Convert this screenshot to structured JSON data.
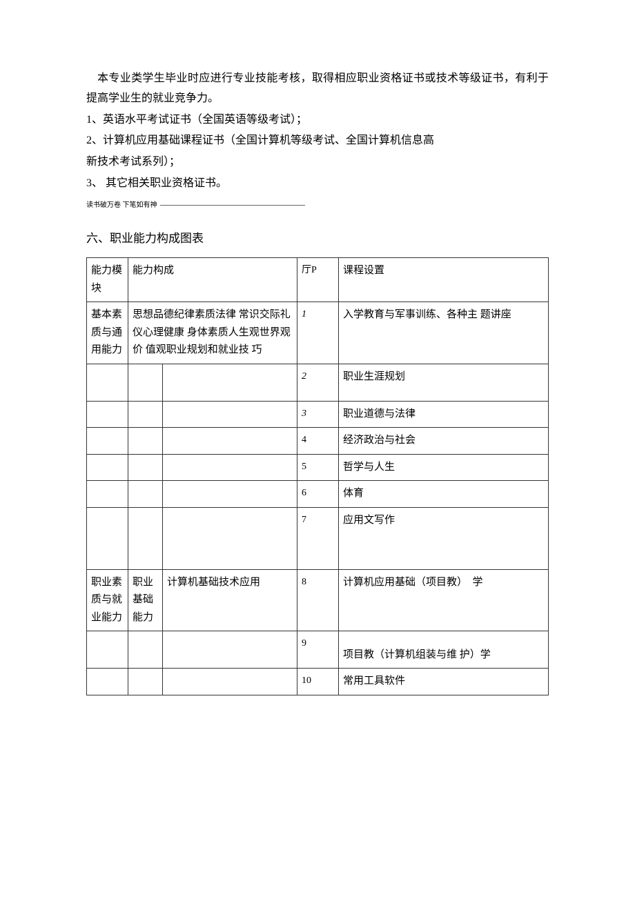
{
  "intro": {
    "p1": "本专业类学生毕业时应进行专业技能考核，取得相应职业资格证书或技术等级证书，有利于提高学业生的就业竞争力。",
    "item1": "1、英语水平考试证书（全国英语等级考试）；",
    "item2_l1": "2、计算机应用基础课程证书（全国计算机等级考试、全国计算机信息高",
    "item2_l2": "新技术考试系列）；",
    "item3": "3、 其它相关职业资格证书。"
  },
  "footnote_text": "读书破万卷 下笔如有神",
  "section_heading": "六、职业能力构成图表",
  "table": {
    "header": {
      "c1": "能力模块",
      "c2": "能力构成",
      "c3": "厅P",
      "c4": "课程设置"
    },
    "rows": [
      {
        "c1": "基本素质与通用能力",
        "c2": "思想品德纪律素质法律 常识交际礼仪心理健康 身体素质人生观世界观价 值观职业规划和就业技 巧",
        "c3": "1",
        "c4": "入学教育与军事训练、各种主 题讲座",
        "italic": true,
        "span_c2": 2
      },
      {
        "c1": "",
        "c2a": "",
        "c2b": "",
        "c3": "2",
        "c4": "职业生涯规划",
        "italic": true
      },
      {
        "c1": "",
        "c2a": "",
        "c2b": "",
        "c3": "3",
        "c4": "职业道德与法律",
        "italic": true
      },
      {
        "c1": "",
        "c2a": "",
        "c2b": "",
        "c3": "4",
        "c4": "经济政治与社会"
      },
      {
        "c1": "",
        "c2a": "",
        "c2b": "",
        "c3": "5",
        "c4": "哲学与人生"
      },
      {
        "c1": "",
        "c2a": "",
        "c2b": "",
        "c3": "6",
        "c4": "体育"
      },
      {
        "c1": "",
        "c2a": "",
        "c2b": "",
        "c3": "7",
        "c4": "应用文写作",
        "tall": true
      },
      {
        "c1": "职业素质与就业能力",
        "c2a": "职业基础能力",
        "c2b": "计算机基础技术应用",
        "c3": "8",
        "c4": "计算机应用基础（项目教）　学"
      },
      {
        "c1": "",
        "c2a": "",
        "c2b": "",
        "c3": "9",
        "c4": "项目教（计算机组装与维 护）学",
        "bottom_align": true
      },
      {
        "c1": "",
        "c2a": "",
        "c2b": "",
        "c3": "10",
        "c4": "常用工具软件"
      }
    ]
  }
}
